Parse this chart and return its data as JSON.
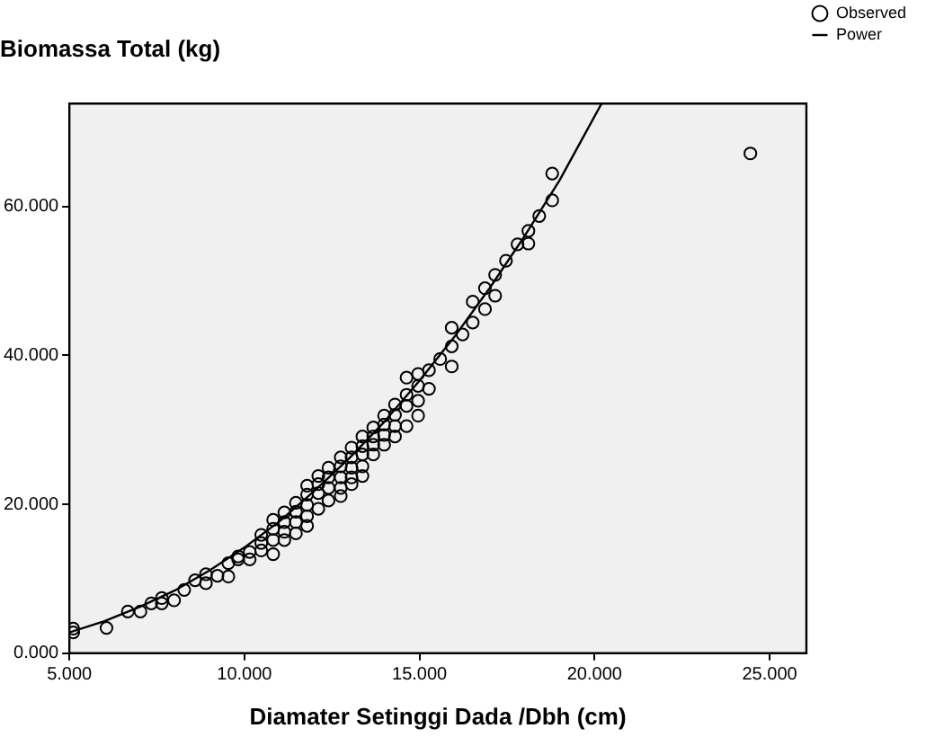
{
  "chart_data": {
    "type": "scatter",
    "title": "Biomassa Total (kg)",
    "xlabel": "Diamater Setinggi Dada /Dbh (cm)",
    "xlim": [
      5,
      26.05
    ],
    "xticks": [
      {
        "value": 5,
        "label": "5.000"
      },
      {
        "value": 10,
        "label": "10.000"
      },
      {
        "value": 15,
        "label": "15.000"
      },
      {
        "value": 20,
        "label": "20.000"
      },
      {
        "value": 25,
        "label": "25.000"
      }
    ],
    "ylim": [
      0,
      73.8
    ],
    "yticks": [
      {
        "value": 0,
        "label": "0.000"
      },
      {
        "value": 20,
        "label": "20.000"
      },
      {
        "value": 40,
        "label": "40.000"
      },
      {
        "value": 60,
        "label": "60.000"
      }
    ],
    "legend": "top right",
    "series": [
      {
        "name": "Observed",
        "marker": "circle",
        "color": "#000000",
        "x": [
          5.11,
          5.11,
          6.06,
          6.67,
          7.03,
          7.34,
          7.64,
          7.64,
          7.99,
          8.28,
          8.59,
          8.9,
          8.9,
          9.23,
          9.54,
          9.54,
          9.82,
          9.82,
          10.15,
          10.15,
          10.48,
          10.48,
          10.48,
          10.82,
          10.82,
          10.82,
          10.82,
          11.14,
          11.14,
          11.14,
          11.14,
          11.47,
          11.47,
          11.47,
          11.47,
          11.79,
          11.79,
          11.79,
          11.79,
          11.79,
          12.11,
          12.11,
          12.11,
          12.11,
          12.4,
          12.4,
          12.4,
          12.4,
          12.75,
          12.75,
          12.75,
          12.75,
          12.75,
          13.06,
          13.06,
          13.06,
          13.06,
          13.06,
          13.37,
          13.37,
          13.37,
          13.37,
          13.37,
          13.68,
          13.68,
          13.68,
          13.68,
          13.99,
          13.99,
          13.99,
          13.99,
          14.3,
          14.3,
          14.3,
          14.3,
          14.63,
          14.63,
          14.63,
          14.63,
          14.96,
          14.96,
          14.96,
          14.96,
          15.27,
          15.27,
          15.59,
          15.92,
          15.92,
          15.92,
          16.23,
          16.52,
          16.52,
          16.87,
          16.87,
          17.16,
          17.16,
          17.47,
          17.8,
          18.11,
          18.11,
          18.42,
          18.79,
          18.79,
          24.45
        ],
        "values": [
          3.3,
          2.8,
          3.4,
          5.6,
          5.6,
          6.7,
          7.4,
          6.7,
          7.1,
          8.5,
          9.8,
          9.4,
          10.6,
          10.4,
          12.1,
          10.3,
          13.0,
          12.6,
          13.6,
          12.6,
          15.9,
          14.8,
          13.8,
          17.9,
          16.7,
          15.2,
          13.3,
          18.9,
          17.6,
          16.3,
          15.2,
          20.2,
          19.0,
          17.6,
          16.1,
          22.5,
          21.3,
          19.9,
          18.4,
          17.1,
          23.8,
          22.7,
          21.5,
          19.4,
          24.9,
          23.6,
          22.2,
          20.5,
          26.3,
          25.1,
          23.6,
          22.2,
          21.1,
          27.6,
          26.3,
          24.9,
          23.6,
          22.7,
          29.1,
          27.8,
          26.7,
          25.1,
          23.8,
          30.3,
          29.1,
          28.0,
          26.7,
          31.9,
          30.7,
          29.3,
          28.0,
          33.4,
          32.0,
          30.5,
          29.1,
          37.0,
          34.7,
          33.2,
          30.5,
          37.5,
          35.9,
          33.9,
          31.9,
          38.0,
          35.5,
          39.5,
          43.7,
          41.2,
          38.5,
          42.8,
          47.2,
          44.4,
          49.0,
          46.2,
          50.8,
          48.0,
          52.7,
          54.9,
          56.7,
          55.0,
          58.7,
          64.4,
          60.8,
          67.1
        ]
      },
      {
        "name": "Power",
        "type": "line",
        "marker": "none",
        "color": "#000000",
        "x": [
          5,
          6,
          7,
          8,
          9,
          10,
          11,
          12,
          13,
          14,
          15,
          16,
          17,
          18,
          19,
          20.2
        ],
        "values": [
          2.8,
          4.3,
          6.2,
          8.4,
          11.1,
          14.2,
          17.7,
          21.8,
          26.2,
          31.1,
          36.6,
          42.5,
          49.0,
          56.0,
          63.5,
          73.8
        ]
      }
    ]
  }
}
